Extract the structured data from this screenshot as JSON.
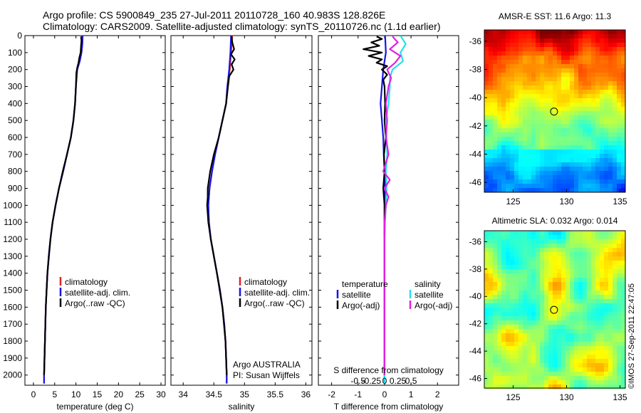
{
  "header": {
    "line1": "Argo profile: CS 5900849_235 27-Jul-2011 20110728_160 40.983S 128.826E",
    "line2": "Climatology: CARS2009. Satellite-adjusted climatology: synTS_20110726.nc (1.1d earlier)"
  },
  "credit": "©IMOS 27-Sep-2011 22:47:05",
  "colors": {
    "climatology": "#e02020",
    "satellite": "#1515e6",
    "argo": "#000000",
    "salinity_satellite": "#22e0f0",
    "salinity_argo": "#e020e0"
  },
  "chart_data": [
    {
      "type": "line",
      "id": "temperature-profile",
      "xlabel": "temperature (deg C)",
      "ylabel": "",
      "xlim": [
        -2,
        31
      ],
      "ylim": [
        2060,
        0
      ],
      "xticks": [
        0,
        5,
        10,
        15,
        20,
        25,
        30
      ],
      "yticks": [
        0,
        100,
        200,
        300,
        400,
        500,
        600,
        700,
        800,
        900,
        1000,
        1100,
        1200,
        1300,
        1400,
        1500,
        1600,
        1700,
        1800,
        1900,
        2000
      ],
      "legend": [
        "climatology",
        "satellite-adj. clim.",
        "Argo(..raw -QC)"
      ],
      "series": [
        {
          "name": "climatology",
          "color": "#e02020",
          "depth": [
            0,
            50,
            100,
            150,
            200,
            300,
            400,
            500,
            600,
            700,
            800,
            900,
            1000,
            1100,
            1200,
            1300,
            1400,
            1500,
            1600,
            1700,
            1800,
            1900,
            2000,
            2050
          ],
          "values": [
            11.6,
            11.5,
            11.3,
            10.9,
            10.3,
            10.0,
            9.8,
            9.4,
            8.8,
            7.9,
            7.0,
            6.0,
            5.2,
            4.5,
            4.0,
            3.6,
            3.3,
            3.1,
            2.9,
            2.8,
            2.7,
            2.6,
            2.5,
            2.5
          ]
        },
        {
          "name": "satellite-adj. clim.",
          "color": "#1515e6",
          "depth": [
            0,
            50,
            100,
            150,
            200,
            300,
            400,
            500,
            600,
            700,
            800,
            900,
            1000,
            1100,
            1200,
            1300,
            1400,
            1500,
            1600,
            1700,
            1800,
            1900,
            2000,
            2050
          ],
          "values": [
            11.5,
            11.5,
            11.3,
            10.9,
            10.3,
            10.0,
            9.8,
            9.4,
            8.8,
            7.9,
            7.0,
            6.0,
            5.2,
            4.5,
            4.0,
            3.6,
            3.3,
            3.1,
            2.9,
            2.8,
            2.7,
            2.6,
            2.5,
            2.5
          ]
        },
        {
          "name": "Argo(..raw -QC)",
          "color": "#000000",
          "depth": [
            5,
            30,
            60,
            100,
            130,
            160,
            190,
            220,
            300,
            400,
            500,
            600,
            700,
            800,
            900,
            1000,
            1100,
            1200,
            1400,
            1600,
            1800,
            2000
          ],
          "values": [
            11.2,
            11.3,
            11.2,
            11.1,
            10.8,
            10.6,
            10.3,
            10.1,
            10.0,
            9.8,
            9.4,
            8.8,
            7.9,
            6.9,
            6.0,
            5.2,
            4.5,
            4.0,
            3.3,
            2.9,
            2.7,
            2.5
          ]
        }
      ]
    },
    {
      "type": "line",
      "id": "salinity-profile",
      "xlabel": "salinity",
      "ylabel": "",
      "xlim": [
        33.8,
        36.1
      ],
      "ylim": [
        2060,
        0
      ],
      "xticks": [
        34,
        34.5,
        35,
        35.5,
        36
      ],
      "legend": [
        "climatology",
        "satellite-adj. clim.",
        "Argo(..raw -QC)"
      ],
      "annotation": [
        "Argo AUSTRALIA",
        "PI: Susan Wijffels"
      ],
      "series": [
        {
          "name": "climatology",
          "color": "#e02020",
          "depth": [
            0,
            100,
            200,
            300,
            400,
            500,
            600,
            700,
            800,
            900,
            1000,
            1100,
            1200,
            1300,
            1400,
            1500,
            1600,
            1700,
            1800,
            1900,
            2000,
            2050
          ],
          "values": [
            34.8,
            34.78,
            34.76,
            34.72,
            34.7,
            34.64,
            34.58,
            34.52,
            34.47,
            34.43,
            34.41,
            34.42,
            34.45,
            34.5,
            34.55,
            34.6,
            34.64,
            34.67,
            34.69,
            34.7,
            34.71,
            34.71
          ]
        },
        {
          "name": "satellite-adj. clim.",
          "color": "#1515e6",
          "depth": [
            0,
            100,
            200,
            300,
            400,
            500,
            600,
            700,
            800,
            900,
            1000,
            1100,
            1200,
            1300,
            1400,
            1500,
            1600,
            1700,
            1800,
            1900,
            2000,
            2050
          ],
          "values": [
            34.78,
            34.77,
            34.75,
            34.72,
            34.7,
            34.64,
            34.58,
            34.52,
            34.47,
            34.43,
            34.41,
            34.42,
            34.45,
            34.5,
            34.55,
            34.6,
            34.64,
            34.67,
            34.69,
            34.7,
            34.71,
            34.71
          ]
        },
        {
          "name": "Argo(..raw -QC)",
          "color": "#000000",
          "depth": [
            5,
            40,
            80,
            110,
            140,
            170,
            200,
            240,
            300,
            400,
            500,
            600,
            700,
            800,
            850,
            900,
            950,
            1000,
            1050,
            1100,
            1200,
            1400,
            1600,
            1800,
            2000
          ],
          "values": [
            34.79,
            34.8,
            34.83,
            34.78,
            34.84,
            34.79,
            34.82,
            34.75,
            34.73,
            34.7,
            34.64,
            34.58,
            34.5,
            34.44,
            34.42,
            34.4,
            34.4,
            34.39,
            34.4,
            34.41,
            34.45,
            34.55,
            34.64,
            34.69,
            34.71
          ]
        }
      ]
    },
    {
      "type": "line",
      "id": "difference-profile",
      "xlabel": "T difference from climatology",
      "xlabel_top": "S difference from climatology",
      "xlim": [
        -2.5,
        2.8
      ],
      "ylim": [
        2060,
        0
      ],
      "xticks": [
        -2,
        -1,
        0,
        1,
        2
      ],
      "xticks_s": [
        -0.5,
        -0.25,
        0,
        0.25,
        0.5
      ],
      "xticks_s_labels": [
        "-0.5",
        "-0.25",
        "0",
        "0.25",
        "0.5"
      ],
      "legend_t": [
        "temperature",
        "satellite",
        "Argo(-adj)"
      ],
      "legend_s": [
        "salinity",
        "satellite",
        "Argo(-adj)"
      ],
      "series": [
        {
          "name": "satellite",
          "color": "#1515e6",
          "depth": [
            0,
            100,
            200,
            300,
            400,
            500,
            600,
            700,
            800,
            900,
            1000,
            1500,
            2000,
            2050
          ],
          "values": [
            0.02,
            0.05,
            -0.05,
            -0.1,
            -0.15,
            -0.1,
            -0.05,
            -0.03,
            0.0,
            0.02,
            0.0,
            0.0,
            0.0,
            0.0
          ]
        },
        {
          "name": "Argo(-adj)",
          "color": "#000000",
          "depth": [
            5,
            20,
            40,
            60,
            80,
            100,
            120,
            140,
            160,
            180,
            200,
            230,
            260,
            300,
            400,
            500,
            600,
            700,
            800,
            900,
            1000,
            1100,
            1200,
            1500,
            2000
          ],
          "values": [
            -0.3,
            -0.1,
            -0.5,
            -0.2,
            -0.8,
            -0.1,
            -0.6,
            -0.1,
            -0.3,
            0.1,
            -0.1,
            0.1,
            -0.05,
            0.0,
            0.02,
            0.0,
            0.05,
            -0.02,
            0.0,
            -0.05,
            0.0,
            0.0,
            0.0,
            0.0,
            0.0
          ]
        },
        {
          "name": "salinity satellite",
          "color": "#22e0f0",
          "depth": [
            0,
            50,
            100,
            150,
            200,
            250,
            300,
            400,
            500,
            600,
            700,
            800,
            900,
            1000,
            1100,
            1200,
            1500,
            2000,
            2050
          ],
          "values": [
            0.6,
            0.8,
            0.6,
            0.7,
            0.3,
            0.2,
            0.2,
            0.15,
            0.05,
            0.08,
            0.1,
            0.05,
            0.08,
            0.05,
            0.02,
            0.0,
            0.0,
            0.0,
            0.0
          ]
        },
        {
          "name": "salinity Argo(-adj)",
          "color": "#e020e0",
          "depth": [
            5,
            40,
            80,
            120,
            160,
            200,
            250,
            300,
            400,
            500,
            600,
            700,
            800,
            850,
            900,
            950,
            1000,
            1100,
            1200,
            1500,
            2000
          ],
          "values": [
            0.3,
            0.5,
            0.2,
            0.6,
            0.4,
            0.1,
            0.25,
            0.15,
            0.05,
            0.1,
            0.05,
            0.15,
            -0.05,
            0.2,
            0.0,
            0.15,
            0.05,
            0.0,
            0.0,
            0.0,
            0.0
          ]
        }
      ]
    },
    {
      "type": "heatmap",
      "id": "sst-map",
      "title": "AMSR-E SST: 11.6 Argo: 11.3",
      "xlim": [
        122.3,
        135.5
      ],
      "ylim": [
        -46.7,
        -35.2
      ],
      "xticks": [
        125,
        130,
        135
      ],
      "yticks": [
        -36,
        -38,
        -40,
        -42,
        -44,
        -46
      ],
      "marker": {
        "lon": 128.826,
        "lat": -40.983
      },
      "field": "sst"
    },
    {
      "type": "heatmap",
      "id": "sla-map",
      "title": "Altimetric SLA: 0.032 Argo: 0.014",
      "xlim": [
        122.3,
        135.5
      ],
      "ylim": [
        -46.7,
        -35.2
      ],
      "xticks": [
        125,
        130,
        135
      ],
      "yticks": [
        -36,
        -38,
        -40,
        -42,
        -44,
        -46
      ],
      "marker": {
        "lon": 128.826,
        "lat": -40.983
      },
      "field": "sla"
    }
  ]
}
